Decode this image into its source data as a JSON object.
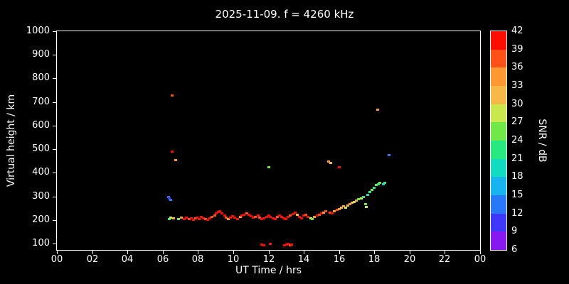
{
  "title": "2025-11-09. f = 4260 kHz",
  "colors": {
    "background": "#000000",
    "foreground": "#ffffff"
  },
  "chart_data": {
    "type": "scatter",
    "title": "2025-11-09. f = 4260 kHz",
    "xlabel": "UT Time / hrs",
    "ylabel": "Virtual height / km",
    "xlim": [
      0,
      24
    ],
    "ylim": [
      73,
      1000
    ],
    "xticks": {
      "values": [
        0,
        2,
        4,
        6,
        8,
        10,
        12,
        14,
        16,
        18,
        20,
        22,
        24
      ],
      "labels": [
        "00",
        "02",
        "04",
        "06",
        "08",
        "10",
        "12",
        "14",
        "16",
        "18",
        "20",
        "22",
        "00"
      ]
    },
    "yticks": [
      100,
      200,
      300,
      400,
      500,
      600,
      700,
      800,
      900,
      1000
    ],
    "grid": false,
    "colorbar": {
      "label": "SNR / dB",
      "vmin": 6,
      "vmax": 42,
      "ticks": [
        42,
        39,
        36,
        33,
        30,
        27,
        24,
        21,
        18,
        15,
        12,
        9,
        6
      ],
      "palette_low_to_high": [
        "#8818f0",
        "#4038f8",
        "#2878f8",
        "#18b4f0",
        "#10dcc0",
        "#28e880",
        "#70e848",
        "#c8e84c",
        "#f8b848",
        "#ff9830",
        "#ff5018",
        "#ff0c00"
      ]
    },
    "points_format": [
      "ut_hours",
      "virtual_height_km",
      "snr_db"
    ],
    "points": [
      [
        6.33,
        300,
        12
      ],
      [
        6.38,
        292,
        9
      ],
      [
        6.45,
        286,
        13
      ],
      [
        6.38,
        206,
        21
      ],
      [
        6.45,
        210,
        27
      ],
      [
        6.6,
        208,
        30
      ],
      [
        6.55,
        730,
        36
      ],
      [
        6.52,
        490,
        40
      ],
      [
        6.72,
        455,
        33
      ],
      [
        6.9,
        205,
        24
      ],
      [
        7.05,
        210,
        33
      ],
      [
        7.2,
        206,
        39
      ],
      [
        7.35,
        210,
        42
      ],
      [
        7.5,
        204,
        38
      ],
      [
        7.62,
        208,
        40
      ],
      [
        7.75,
        203,
        42
      ],
      [
        7.85,
        207,
        36
      ],
      [
        7.95,
        211,
        40
      ],
      [
        8.05,
        206,
        42
      ],
      [
        8.17,
        213,
        39
      ],
      [
        8.3,
        209,
        41
      ],
      [
        8.45,
        205,
        37
      ],
      [
        8.55,
        201,
        40
      ],
      [
        8.67,
        209,
        42
      ],
      [
        8.8,
        214,
        38
      ],
      [
        8.95,
        221,
        36
      ],
      [
        9.05,
        229,
        41
      ],
      [
        9.15,
        236,
        39
      ],
      [
        9.25,
        239,
        42
      ],
      [
        9.37,
        231,
        40
      ],
      [
        9.5,
        221,
        42
      ],
      [
        9.6,
        212,
        38
      ],
      [
        9.72,
        206,
        35
      ],
      [
        9.85,
        210,
        41
      ],
      [
        9.95,
        216,
        39
      ],
      [
        10.1,
        211,
        42
      ],
      [
        10.25,
        206,
        40
      ],
      [
        10.4,
        214,
        33
      ],
      [
        10.5,
        219,
        41
      ],
      [
        10.62,
        224,
        39
      ],
      [
        10.75,
        229,
        36
      ],
      [
        10.9,
        224,
        42
      ],
      [
        11.0,
        216,
        40
      ],
      [
        11.12,
        210,
        42
      ],
      [
        11.25,
        214,
        38
      ],
      [
        11.4,
        219,
        41
      ],
      [
        11.5,
        211,
        36
      ],
      [
        11.62,
        206,
        39
      ],
      [
        11.75,
        209,
        42
      ],
      [
        11.88,
        214,
        40
      ],
      [
        12.0,
        219,
        42
      ],
      [
        12.02,
        425,
        24
      ],
      [
        12.12,
        214,
        39
      ],
      [
        12.25,
        209,
        42
      ],
      [
        12.4,
        205,
        39
      ],
      [
        12.52,
        213,
        36
      ],
      [
        12.62,
        219,
        41
      ],
      [
        12.75,
        214,
        39
      ],
      [
        12.88,
        209,
        42
      ],
      [
        13.0,
        206,
        40
      ],
      [
        13.12,
        213,
        42
      ],
      [
        13.25,
        219,
        36
      ],
      [
        13.38,
        228,
        39
      ],
      [
        13.5,
        234,
        41
      ],
      [
        13.62,
        224,
        30
      ],
      [
        13.75,
        214,
        39
      ],
      [
        13.88,
        209,
        42
      ],
      [
        14.0,
        219,
        40
      ],
      [
        14.12,
        224,
        36
      ],
      [
        14.25,
        214,
        39
      ],
      [
        14.38,
        209,
        27
      ],
      [
        14.5,
        204,
        24
      ],
      [
        14.62,
        213,
        33
      ],
      [
        14.75,
        219,
        39
      ],
      [
        14.88,
        224,
        36
      ],
      [
        15.0,
        229,
        39
      ],
      [
        15.12,
        234,
        33
      ],
      [
        15.25,
        239,
        36
      ],
      [
        15.42,
        450,
        33
      ],
      [
        15.52,
        444,
        31
      ],
      [
        15.5,
        234,
        36
      ],
      [
        15.62,
        229,
        39
      ],
      [
        15.75,
        239,
        33
      ],
      [
        15.88,
        244,
        36
      ],
      [
        16.0,
        426,
        40
      ],
      [
        16.02,
        249,
        33
      ],
      [
        16.12,
        254,
        30
      ],
      [
        16.25,
        259,
        33
      ],
      [
        16.38,
        254,
        27
      ],
      [
        16.5,
        264,
        30
      ],
      [
        16.62,
        269,
        33
      ],
      [
        16.75,
        274,
        30
      ],
      [
        16.88,
        279,
        27
      ],
      [
        17.0,
        284,
        30
      ],
      [
        17.12,
        289,
        24
      ],
      [
        17.25,
        294,
        27
      ],
      [
        17.38,
        299,
        21
      ],
      [
        17.5,
        268,
        24
      ],
      [
        17.55,
        258,
        27
      ],
      [
        17.62,
        309,
        18
      ],
      [
        17.75,
        319,
        21
      ],
      [
        17.88,
        329,
        24
      ],
      [
        18.0,
        339,
        21
      ],
      [
        18.1,
        349,
        24
      ],
      [
        18.2,
        670,
        33
      ],
      [
        18.22,
        354,
        21
      ],
      [
        18.32,
        360,
        24
      ],
      [
        18.5,
        352,
        19
      ],
      [
        18.6,
        358,
        22
      ],
      [
        18.85,
        475,
        12
      ],
      [
        11.62,
        96,
        39
      ],
      [
        11.72,
        95,
        42
      ],
      [
        12.1,
        99,
        40
      ],
      [
        12.92,
        95,
        42
      ],
      [
        13.02,
        96,
        39
      ],
      [
        13.12,
        99,
        42
      ],
      [
        13.22,
        95,
        36
      ],
      [
        13.32,
        97,
        39
      ]
    ]
  }
}
